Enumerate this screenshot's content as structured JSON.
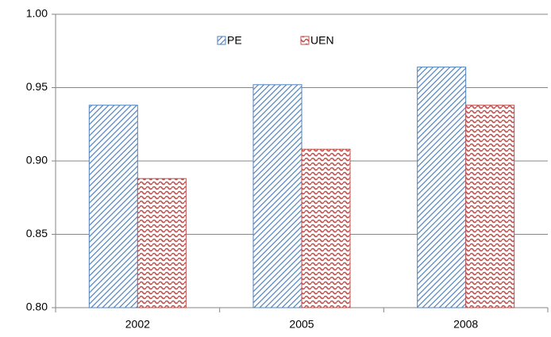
{
  "chart_data": {
    "type": "bar",
    "categories": [
      "2002",
      "2005",
      "2008"
    ],
    "series": [
      {
        "name": "PE",
        "color": "#4f81bd",
        "values": [
          0.938,
          0.952,
          0.964
        ]
      },
      {
        "name": "UEN",
        "color": "#c0504d",
        "values": [
          0.888,
          0.908,
          0.938
        ]
      }
    ],
    "ylim": [
      0.8,
      1.0
    ],
    "yticks": [
      {
        "value": 0.8,
        "label": "0.80"
      },
      0.85,
      {
        "value": 0.9,
        "label": "0.90"
      },
      0.95,
      {
        "value": 1.0,
        "label": "1.00"
      }
    ],
    "grid": true
  }
}
